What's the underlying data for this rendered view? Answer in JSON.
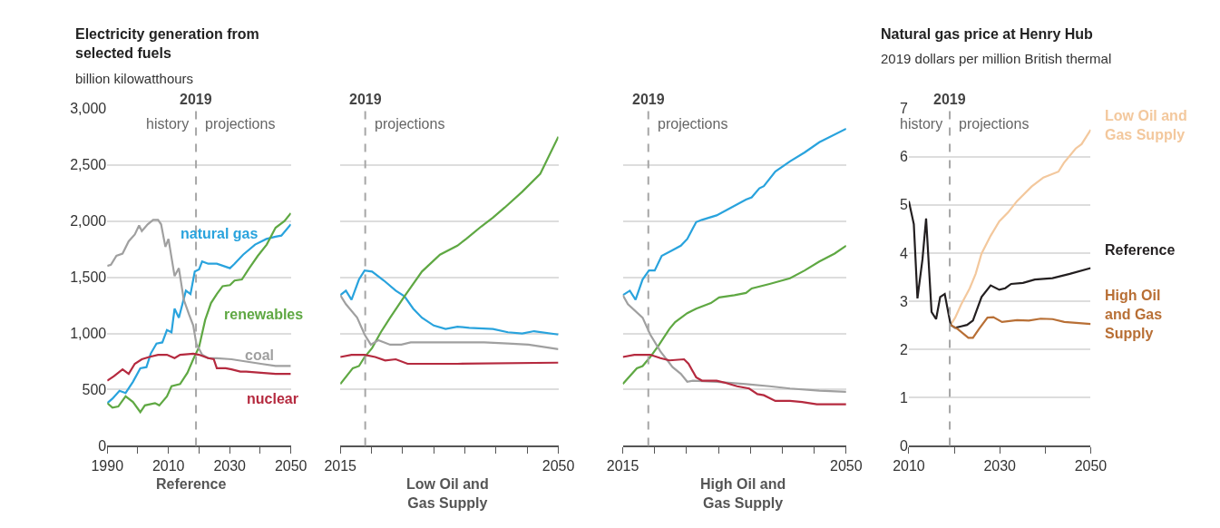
{
  "chart_data": [
    {
      "type": "line",
      "title": "Electricity generation from selected fuels",
      "subtitle": "billion kilowatthours",
      "xlabel": "Reference",
      "xlim": [
        1990,
        2050
      ],
      "xticks": [
        1990,
        {
          "value": 2000,
          "label": null
        },
        2010,
        {
          "value": 2020,
          "label": null
        },
        2030,
        {
          "value": 2040,
          "label": null
        },
        2050
      ],
      "ylim": [
        0,
        3000
      ],
      "yticks": [
        0,
        500,
        {
          "value": 1000,
          "label": "1,000"
        },
        {
          "value": 1500,
          "label": "1,500"
        },
        {
          "value": 2000,
          "label": "2,000"
        },
        {
          "value": 2500,
          "label": "2,500"
        },
        {
          "value": 3000,
          "label": "3,000"
        }
      ],
      "grid": "y",
      "ref_lines": [
        {
          "axis": "x",
          "value": 2019,
          "label": "2019",
          "color": "#a6a6a6",
          "line_style": "dashed"
        }
      ],
      "annotations": [
        "history",
        "projections"
      ],
      "series": [
        {
          "name": "natural gas",
          "color": "#29a3dd",
          "x": [
            1990,
            1991.7,
            1994,
            1996,
            1998.4,
            2000.8,
            2002.8,
            2004.2,
            2006.1,
            2008,
            2009.5,
            2011,
            2012,
            2013.4,
            2015.7,
            2017.2,
            2018.6,
            2020,
            2021,
            2023,
            2025.8,
            2030.1,
            2031.6,
            2034.4,
            2038.3,
            2042,
            2045,
            2046.9,
            2050
          ],
          "values": [
            380,
            420,
            490,
            470,
            570,
            690,
            700,
            820,
            910,
            920,
            1030,
            1010,
            1220,
            1140,
            1380,
            1350,
            1550,
            1570,
            1640,
            1620,
            1620,
            1580,
            1620,
            1700,
            1790,
            1840,
            1860,
            1870,
            1970
          ]
        },
        {
          "name": "renewables",
          "color": "#5fa843",
          "x": [
            1990,
            1991.7,
            1993.6,
            1996,
            1998.4,
            2000.8,
            2002.3,
            2005.6,
            2007,
            2009.5,
            2011,
            2013.8,
            2016.2,
            2018.1,
            2020,
            2022,
            2023.9,
            2025.8,
            2027.7,
            2030.1,
            2031.6,
            2034,
            2036.4,
            2039.2,
            2042.1,
            2045,
            2047.9,
            2050
          ],
          "values": [
            380,
            340,
            350,
            440,
            390,
            300,
            360,
            380,
            360,
            440,
            530,
            550,
            650,
            770,
            880,
            1120,
            1270,
            1350,
            1420,
            1430,
            1470,
            1480,
            1580,
            1690,
            1790,
            1940,
            2000,
            2070
          ]
        },
        {
          "name": "coal",
          "color": "#a0a0a0",
          "x": [
            1990,
            1991.2,
            1993,
            1995,
            1997,
            1999,
            2000.4,
            2001.3,
            2003.2,
            2005,
            2006.6,
            2007.6,
            2009,
            2010,
            2012,
            2013.4,
            2015,
            2016.7,
            2018.1,
            2019.1,
            2021,
            2023,
            2025.8,
            2030.6,
            2035.4,
            2040.2,
            2045,
            2050
          ],
          "values": [
            1600,
            1610,
            1690,
            1710,
            1820,
            1880,
            1960,
            1910,
            1970,
            2010,
            2010,
            1970,
            1770,
            1840,
            1510,
            1580,
            1300,
            1170,
            1070,
            910,
            810,
            780,
            780,
            770,
            750,
            730,
            710,
            710
          ]
        },
        {
          "name": "nuclear",
          "color": "#b52a3f",
          "x": [
            1990,
            1992.2,
            1995,
            1997,
            1999,
            2001.3,
            2003.7,
            2006.6,
            2009.5,
            2012,
            2013.8,
            2018.1,
            2020,
            2023,
            2024.8,
            2025.8,
            2028.7,
            2030.6,
            2033.5,
            2035.4,
            2040.2,
            2045,
            2050
          ],
          "values": [
            580,
            620,
            680,
            640,
            730,
            770,
            790,
            810,
            810,
            780,
            810,
            820,
            810,
            780,
            770,
            690,
            690,
            680,
            660,
            660,
            650,
            640,
            640
          ]
        }
      ]
    },
    {
      "type": "line",
      "xlabel": "Low Oil and Gas Supply",
      "tick_labels": "x",
      "xlim": [
        2015,
        2050
      ],
      "xticks": [
        2015,
        {
          "value": 2020,
          "label": null
        },
        {
          "value": 2025,
          "label": null
        },
        {
          "value": 2030,
          "label": null
        },
        {
          "value": 2035,
          "label": null
        },
        {
          "value": 2040,
          "label": null
        },
        {
          "value": 2045,
          "label": null
        },
        2050
      ],
      "ylim": [
        0,
        3000
      ],
      "yticks": [
        0,
        500,
        1000,
        1500,
        2000,
        2500,
        3000
      ],
      "grid": "y",
      "ref_lines": [
        {
          "axis": "x",
          "value": 2019,
          "label": "2019",
          "color": "#a6a6a6",
          "line_style": "dashed"
        }
      ],
      "annotations": [
        "projections"
      ],
      "series": [
        {
          "color": "#29a3dd",
          "x": [
            2015,
            2015.9,
            2016.8,
            2018,
            2018.9,
            2020.1,
            2022,
            2023.9,
            2025.3,
            2026.7,
            2028.1,
            2030,
            2031.9,
            2033.8,
            2035.7,
            2039.5,
            2041.9,
            2044.2,
            2046.1,
            2050
          ],
          "values": [
            1340,
            1380,
            1300,
            1480,
            1560,
            1550,
            1470,
            1380,
            1330,
            1220,
            1140,
            1070,
            1040,
            1060,
            1050,
            1040,
            1010,
            1000,
            1020,
            990
          ]
        },
        {
          "color": "#5fa843",
          "x": [
            2015,
            2017,
            2018,
            2018.9,
            2020.1,
            2021.5,
            2023,
            2025.3,
            2028.1,
            2031,
            2033.8,
            2035.2,
            2037.6,
            2039.5,
            2041.4,
            2044.2,
            2047.1,
            2050
          ],
          "values": [
            550,
            690,
            710,
            790,
            870,
            1010,
            1140,
            1330,
            1550,
            1700,
            1780,
            1840,
            1950,
            2030,
            2120,
            2260,
            2420,
            2750
          ]
        },
        {
          "color": "#a0a0a0",
          "x": [
            2015,
            2015.9,
            2017.7,
            2018.9,
            2019.9,
            2021.1,
            2023,
            2024.8,
            2026.3,
            2030,
            2034.8,
            2038.1,
            2041.9,
            2045.2,
            2050
          ],
          "values": [
            1340,
            1260,
            1140,
            990,
            900,
            940,
            900,
            900,
            920,
            920,
            920,
            920,
            910,
            900,
            860
          ]
        },
        {
          "color": "#b52a3f",
          "x": [
            2015,
            2016.8,
            2018.9,
            2020.6,
            2022.2,
            2023.9,
            2025.8,
            2031,
            2033.8,
            2050
          ],
          "values": [
            790,
            810,
            810,
            790,
            760,
            770,
            730,
            730,
            730,
            740
          ]
        }
      ]
    },
    {
      "type": "line",
      "xlabel": "High Oil and Gas Supply",
      "tick_labels": "x",
      "xlim": [
        2015,
        2050
      ],
      "xticks": [
        2015,
        {
          "value": 2020,
          "label": null
        },
        {
          "value": 2025,
          "label": null
        },
        {
          "value": 2030,
          "label": null
        },
        {
          "value": 2035,
          "label": null
        },
        {
          "value": 2040,
          "label": null
        },
        {
          "value": 2045,
          "label": null
        },
        2050
      ],
      "ylim": [
        0,
        3000
      ],
      "yticks": [
        0,
        500,
        1000,
        1500,
        2000,
        2500,
        3000
      ],
      "grid": "y",
      "ref_lines": [
        {
          "axis": "x",
          "value": 2019,
          "label": "2019",
          "color": "#a6a6a6",
          "line_style": "dashed"
        }
      ],
      "annotations": [
        "projections"
      ],
      "series": [
        {
          "color": "#29a3dd",
          "x": [
            2015,
            2016.1,
            2017,
            2018.1,
            2019.1,
            2020,
            2021.1,
            2022.8,
            2024.1,
            2025.1,
            2026.5,
            2027.4,
            2029.7,
            2032,
            2034.3,
            2035.2,
            2036.4,
            2037.1,
            2038.9,
            2041.2,
            2043.5,
            2045.8,
            2050
          ],
          "values": [
            1340,
            1380,
            1300,
            1480,
            1560,
            1560,
            1690,
            1740,
            1780,
            1840,
            1990,
            2010,
            2050,
            2120,
            2190,
            2210,
            2290,
            2310,
            2440,
            2530,
            2610,
            2700,
            2820
          ]
        },
        {
          "color": "#5fa843",
          "x": [
            2015,
            2017.2,
            2018.1,
            2019.3,
            2020.7,
            2022.3,
            2023.2,
            2025.1,
            2026.5,
            2028.8,
            2030.1,
            2032.5,
            2034.3,
            2035.2,
            2038,
            2041.2,
            2043.5,
            2045.8,
            2048.2,
            2050
          ],
          "values": [
            550,
            690,
            710,
            790,
            900,
            1040,
            1100,
            1180,
            1220,
            1270,
            1320,
            1340,
            1360,
            1400,
            1440,
            1490,
            1560,
            1640,
            1710,
            1780
          ]
        },
        {
          "color": "#a0a0a0",
          "x": [
            2015,
            2015.8,
            2018.1,
            2019.3,
            2020.9,
            2022.8,
            2024.1,
            2025.1,
            2026,
            2029.7,
            2034.3,
            2038,
            2041.2,
            2045.8,
            2050
          ],
          "values": [
            1340,
            1260,
            1140,
            990,
            840,
            700,
            640,
            570,
            580,
            570,
            550,
            530,
            510,
            490,
            480
          ]
        },
        {
          "color": "#b52a3f",
          "x": [
            2015,
            2016.8,
            2019.3,
            2020.9,
            2022.3,
            2024.6,
            2025.3,
            2026.5,
            2027.4,
            2029.7,
            2031.1,
            2032.9,
            2034.8,
            2036.1,
            2037.1,
            2038.9,
            2041.2,
            2043.1,
            2045.4,
            2050
          ],
          "values": [
            790,
            810,
            810,
            780,
            760,
            770,
            730,
            610,
            580,
            580,
            560,
            530,
            510,
            460,
            450,
            400,
            400,
            390,
            370,
            370
          ]
        }
      ]
    },
    {
      "type": "line",
      "title": "Natural gas price at Henry Hub",
      "subtitle": "2019 dollars per million British thermal",
      "xlim": [
        2010,
        2050
      ],
      "xticks": [
        2010,
        {
          "value": 2020,
          "label": null
        },
        2030,
        {
          "value": 2040,
          "label": null
        },
        2050
      ],
      "ylim": [
        0,
        7
      ],
      "yticks": [
        0,
        1,
        2,
        3,
        4,
        5,
        6,
        7
      ],
      "grid": "y",
      "ref_lines": [
        {
          "axis": "x",
          "value": 2019,
          "label": "2019",
          "color": "#a6a6a6",
          "line_style": "dashed"
        }
      ],
      "annotations": [
        "history",
        "projections"
      ],
      "series": [
        {
          "name": "Low Oil and Gas Supply",
          "color": "#f3c89d",
          "x": [
            2019.2,
            2020.2,
            2021.5,
            2023.4,
            2024.7,
            2026,
            2028,
            2029.9,
            2031.8,
            2033.8,
            2037,
            2039.6,
            2042.9,
            2044.1,
            2046.7,
            2048,
            2050
          ],
          "values": [
            2.51,
            2.66,
            2.93,
            3.27,
            3.57,
            3.99,
            4.36,
            4.66,
            4.84,
            5.08,
            5.38,
            5.57,
            5.69,
            5.87,
            6.17,
            6.26,
            6.56
          ]
        },
        {
          "name": "Reference",
          "color": "#231f20",
          "x": [
            2010,
            2011.1,
            2011.9,
            2013,
            2013.8,
            2015,
            2016,
            2016.9,
            2017.9,
            2019.2,
            2020.2,
            2021.5,
            2022.8,
            2024.1,
            2026,
            2028,
            2029.9,
            2031.2,
            2032.5,
            2035.1,
            2037.7,
            2041.6,
            2045.4,
            2050
          ],
          "values": [
            5.08,
            4.6,
            3.06,
            3.87,
            4.72,
            2.78,
            2.63,
            3.09,
            3.15,
            2.51,
            2.45,
            2.48,
            2.51,
            2.6,
            3.09,
            3.33,
            3.24,
            3.27,
            3.36,
            3.38,
            3.45,
            3.48,
            3.57,
            3.69
          ]
        },
        {
          "name": "High Oil and Gas Supply",
          "color": "#b86f35",
          "x": [
            2019.2,
            2020.8,
            2023.1,
            2024.1,
            2025.4,
            2027.3,
            2028.6,
            2030.5,
            2033.8,
            2036.4,
            2039,
            2041.6,
            2044.2,
            2050
          ],
          "values": [
            2.51,
            2.42,
            2.24,
            2.24,
            2.42,
            2.66,
            2.67,
            2.57,
            2.61,
            2.6,
            2.64,
            2.63,
            2.57,
            2.53
          ]
        }
      ]
    }
  ]
}
